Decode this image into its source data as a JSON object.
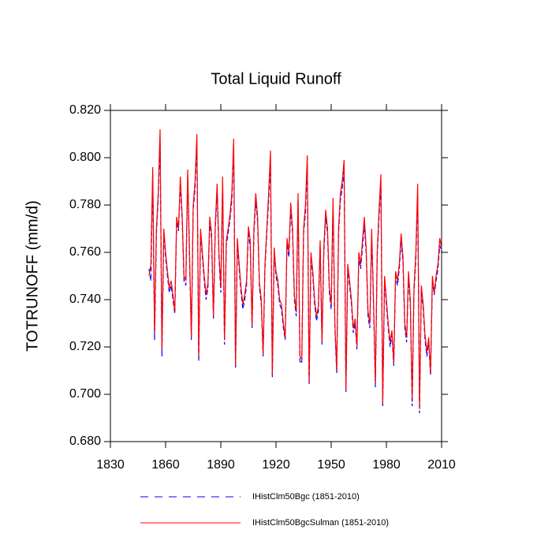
{
  "chart_data": {
    "type": "line",
    "title": "Total Liquid Runoff",
    "y_label": "TOTRUNOFF  (mm/d)",
    "x": [
      1851,
      1852,
      1853,
      1854,
      1855,
      1856,
      1857,
      1858,
      1859,
      1860,
      1861,
      1862,
      1863,
      1864,
      1865,
      1866,
      1867,
      1868,
      1869,
      1870,
      1871,
      1872,
      1873,
      1874,
      1875,
      1876,
      1877,
      1878,
      1879,
      1880,
      1881,
      1882,
      1883,
      1884,
      1885,
      1886,
      1887,
      1888,
      1889,
      1890,
      1891,
      1892,
      1893,
      1894,
      1895,
      1896,
      1897,
      1898,
      1899,
      1900,
      1901,
      1902,
      1903,
      1904,
      1905,
      1906,
      1907,
      1908,
      1909,
      1910,
      1911,
      1912,
      1913,
      1914,
      1915,
      1916,
      1917,
      1918,
      1919,
      1920,
      1921,
      1922,
      1923,
      1924,
      1925,
      1926,
      1927,
      1928,
      1929,
      1930,
      1931,
      1932,
      1933,
      1934,
      1935,
      1936,
      1937,
      1938,
      1939,
      1940,
      1941,
      1942,
      1943,
      1944,
      1945,
      1946,
      1947,
      1948,
      1949,
      1950,
      1951,
      1952,
      1953,
      1954,
      1955,
      1956,
      1957,
      1958,
      1959,
      1960,
      1961,
      1962,
      1963,
      1964,
      1965,
      1966,
      1967,
      1968,
      1969,
      1970,
      1971,
      1972,
      1973,
      1974,
      1975,
      1976,
      1977,
      1978,
      1979,
      1980,
      1981,
      1982,
      1983,
      1984,
      1985,
      1986,
      1987,
      1988,
      1989,
      1990,
      1991,
      1992,
      1993,
      1994,
      1995,
      1996,
      1997,
      1998,
      1999,
      2000,
      2001,
      2002,
      2003,
      2004,
      2005,
      2006,
      2007,
      2008,
      2009,
      2010
    ],
    "series": [
      {
        "name": "IHistClm50Bgc (1851-2010)",
        "color": "#0000ff",
        "dash": true,
        "values": [
          0.753,
          0.748,
          0.793,
          0.723,
          0.768,
          0.783,
          0.808,
          0.716,
          0.768,
          0.758,
          0.75,
          0.743,
          0.746,
          0.74,
          0.734,
          0.773,
          0.769,
          0.789,
          0.774,
          0.748,
          0.746,
          0.792,
          0.758,
          0.723,
          0.778,
          0.787,
          0.806,
          0.714,
          0.768,
          0.758,
          0.748,
          0.74,
          0.745,
          0.773,
          0.766,
          0.732,
          0.77,
          0.786,
          0.758,
          0.743,
          0.789,
          0.721,
          0.763,
          0.768,
          0.774,
          0.782,
          0.805,
          0.711,
          0.764,
          0.753,
          0.743,
          0.736,
          0.74,
          0.746,
          0.769,
          0.762,
          0.728,
          0.768,
          0.782,
          0.773,
          0.745,
          0.738,
          0.716,
          0.753,
          0.768,
          0.782,
          0.799,
          0.707,
          0.76,
          0.75,
          0.746,
          0.738,
          0.736,
          0.728,
          0.723,
          0.764,
          0.758,
          0.778,
          0.768,
          0.74,
          0.733,
          0.782,
          0.714,
          0.713,
          0.768,
          0.777,
          0.797,
          0.704,
          0.758,
          0.75,
          0.738,
          0.731,
          0.735,
          0.763,
          0.721,
          0.76,
          0.775,
          0.768,
          0.743,
          0.736,
          0.78,
          0.728,
          0.709,
          0.768,
          0.782,
          0.787,
          0.795,
          0.701,
          0.753,
          0.746,
          0.738,
          0.726,
          0.73,
          0.719,
          0.758,
          0.753,
          0.762,
          0.772,
          0.76,
          0.733,
          0.728,
          0.767,
          0.738,
          0.703,
          0.758,
          0.775,
          0.789,
          0.695,
          0.748,
          0.738,
          0.728,
          0.72,
          0.725,
          0.712,
          0.75,
          0.746,
          0.753,
          0.765,
          0.756,
          0.728,
          0.722,
          0.749,
          0.738,
          0.695,
          0.743,
          0.757,
          0.785,
          0.692,
          0.744,
          0.736,
          0.723,
          0.716,
          0.722,
          0.708,
          0.748,
          0.742,
          0.748,
          0.753,
          0.763,
          0.76
        ]
      },
      {
        "name": "IHistClm50BgcSulman (1851-2010)",
        "color": "#ff0000",
        "dash": false,
        "values": [
          0.75,
          0.755,
          0.796,
          0.726,
          0.77,
          0.785,
          0.812,
          0.719,
          0.77,
          0.76,
          0.752,
          0.745,
          0.748,
          0.742,
          0.735,
          0.775,
          0.77,
          0.792,
          0.776,
          0.75,
          0.748,
          0.795,
          0.76,
          0.724,
          0.78,
          0.79,
          0.81,
          0.716,
          0.77,
          0.76,
          0.75,
          0.742,
          0.747,
          0.775,
          0.768,
          0.733,
          0.772,
          0.789,
          0.76,
          0.745,
          0.792,
          0.723,
          0.765,
          0.77,
          0.776,
          0.785,
          0.808,
          0.712,
          0.766,
          0.755,
          0.745,
          0.738,
          0.742,
          0.748,
          0.771,
          0.765,
          0.729,
          0.77,
          0.785,
          0.775,
          0.747,
          0.74,
          0.717,
          0.755,
          0.77,
          0.785,
          0.803,
          0.708,
          0.762,
          0.752,
          0.748,
          0.74,
          0.738,
          0.73,
          0.724,
          0.766,
          0.76,
          0.781,
          0.77,
          0.742,
          0.735,
          0.785,
          0.716,
          0.715,
          0.77,
          0.78,
          0.801,
          0.705,
          0.76,
          0.752,
          0.74,
          0.733,
          0.737,
          0.765,
          0.722,
          0.762,
          0.778,
          0.77,
          0.745,
          0.738,
          0.783,
          0.73,
          0.71,
          0.77,
          0.785,
          0.79,
          0.799,
          0.702,
          0.755,
          0.748,
          0.74,
          0.728,
          0.732,
          0.72,
          0.76,
          0.755,
          0.765,
          0.775,
          0.762,
          0.735,
          0.73,
          0.77,
          0.74,
          0.705,
          0.76,
          0.778,
          0.793,
          0.696,
          0.75,
          0.74,
          0.73,
          0.722,
          0.727,
          0.713,
          0.752,
          0.748,
          0.755,
          0.768,
          0.758,
          0.73,
          0.724,
          0.752,
          0.74,
          0.698,
          0.745,
          0.76,
          0.789,
          0.694,
          0.746,
          0.738,
          0.725,
          0.718,
          0.724,
          0.709,
          0.75,
          0.743,
          0.75,
          0.755,
          0.766,
          0.762
        ]
      }
    ],
    "xlim": [
      1830,
      2010
    ],
    "xticks": [
      1830,
      1860,
      1890,
      1920,
      1950,
      1980,
      2010
    ],
    "ylim": [
      0.68,
      0.82
    ],
    "yticks": [
      {
        "value": 0.68,
        "label": "0.680"
      },
      {
        "value": 0.7,
        "label": "0.700"
      },
      {
        "value": 0.72,
        "label": "0.720"
      },
      {
        "value": 0.74,
        "label": "0.740"
      },
      {
        "value": 0.76,
        "label": "0.760"
      },
      {
        "value": 0.78,
        "label": "0.780"
      },
      {
        "value": 0.8,
        "label": "0.800"
      },
      {
        "value": 0.82,
        "label": "0.820"
      }
    ],
    "grid": false
  }
}
